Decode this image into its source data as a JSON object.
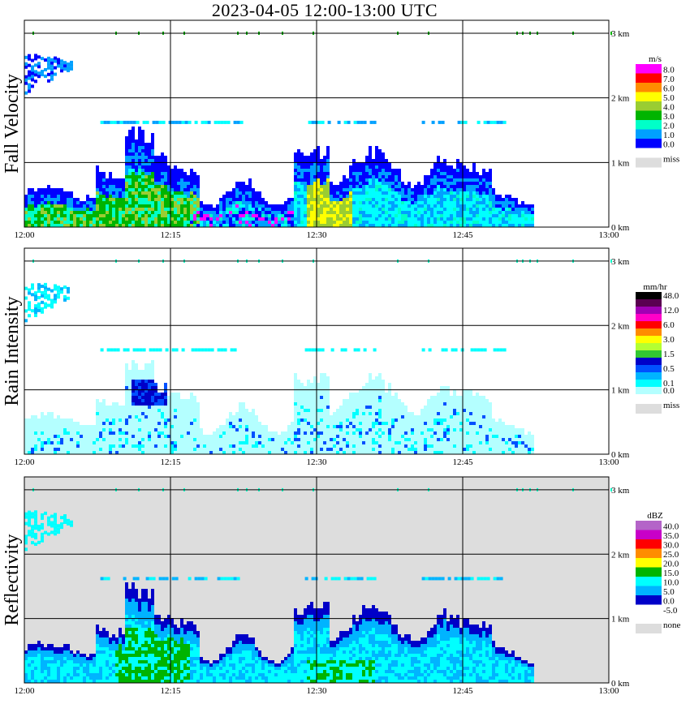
{
  "title": "2023-04-05  12:00-13:00 UTC",
  "chart_data": [
    {
      "type": "heatmap",
      "name": "Fall Velocity",
      "x_ticks": [
        "12:00",
        "12:15",
        "12:30",
        "12:45",
        "13:00"
      ],
      "y_ticks": [
        "0 km",
        "1 km",
        "2 km",
        "3 km"
      ],
      "ylim": [
        0,
        3.2
      ],
      "legend_unit": "m/s",
      "legend": [
        {
          "label": "8.0",
          "color": "#ff00ff"
        },
        {
          "label": "7.0",
          "color": "#ff0000"
        },
        {
          "label": "6.0",
          "color": "#ff8c00"
        },
        {
          "label": "5.0",
          "color": "#ffff00"
        },
        {
          "label": "4.0",
          "color": "#9acd32"
        },
        {
          "label": "3.0",
          "color": "#00b400"
        },
        {
          "label": "2.0",
          "color": "#00ffc8"
        },
        {
          "label": "1.0",
          "color": "#00a0ff"
        },
        {
          "label": "0.0",
          "color": "#0000ff"
        },
        {
          "label": "miss",
          "color": "#dddddd"
        }
      ]
    },
    {
      "type": "heatmap",
      "name": "Rain Intensity",
      "x_ticks": [
        "12:00",
        "12:15",
        "12:30",
        "12:45",
        "13:00"
      ],
      "y_ticks": [
        "0 km",
        "1 km",
        "2 km",
        "3 km"
      ],
      "ylim": [
        0,
        3.2
      ],
      "legend_unit": "mm/hr",
      "legend": [
        {
          "label": "48.0",
          "color": "#000000"
        },
        {
          "label": "",
          "color": "#5a0050"
        },
        {
          "label": "12.0",
          "color": "#a000b4"
        },
        {
          "label": "",
          "color": "#ff00c8"
        },
        {
          "label": "6.0",
          "color": "#ff0000"
        },
        {
          "label": "",
          "color": "#ff8c00"
        },
        {
          "label": "3.0",
          "color": "#ffff00"
        },
        {
          "label": "",
          "color": "#b4ff32"
        },
        {
          "label": "1.5",
          "color": "#32c832"
        },
        {
          "label": "",
          "color": "#0000c8"
        },
        {
          "label": "0.5",
          "color": "#0050ff"
        },
        {
          "label": "",
          "color": "#00b4ff"
        },
        {
          "label": "0.1",
          "color": "#00ffff"
        },
        {
          "label": "0.0",
          "color": "#b4ffff"
        },
        {
          "label": "miss",
          "color": "#dddddd"
        }
      ]
    },
    {
      "type": "heatmap",
      "name": "Reflectivity",
      "x_ticks": [
        "12:00",
        "12:15",
        "12:30",
        "12:45",
        "13:00"
      ],
      "y_ticks": [
        "0 km",
        "1 km",
        "2 km",
        "3 km"
      ],
      "ylim": [
        0,
        3.2
      ],
      "legend_unit": "dBZ",
      "legend": [
        {
          "label": "40.0",
          "color": "#b464c8"
        },
        {
          "label": "35.0",
          "color": "#c800c8"
        },
        {
          "label": "30.0",
          "color": "#ff0000"
        },
        {
          "label": "25.0",
          "color": "#ff8c00"
        },
        {
          "label": "20.0",
          "color": "#ffff00"
        },
        {
          "label": "15.0",
          "color": "#00b400"
        },
        {
          "label": "10.0",
          "color": "#00ffff"
        },
        {
          "label": "5.0",
          "color": "#00b4ff"
        },
        {
          "label": "0.0",
          "color": "#0000c8"
        },
        {
          "label": "-5.0",
          "color": "#ffffff"
        },
        {
          "label": "none",
          "color": "#dddddd"
        }
      ]
    }
  ]
}
